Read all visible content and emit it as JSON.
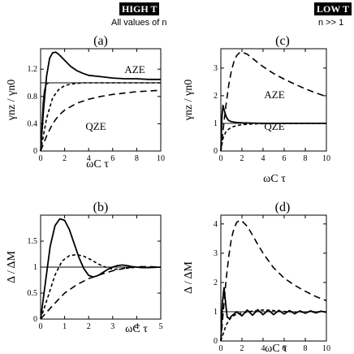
{
  "header": {
    "left_badge": "HIGH T",
    "left_note": "All values of n",
    "right_badge": "LOW T",
    "right_note": "n >> 1"
  },
  "chart_data": [
    {
      "panel": "(a)",
      "type": "line",
      "ylabel": "γnz / γn0",
      "xlabel": "ωC τ",
      "xlim": [
        0,
        10
      ],
      "ylim": [
        0,
        1.5
      ],
      "xticks": [
        0,
        2,
        4,
        6,
        8,
        10
      ],
      "yticks": [
        0,
        0.4,
        0.8,
        1.2
      ],
      "ytick_labels": [
        "0",
        "0.4",
        "0.8",
        "1.2"
      ],
      "annotations": [
        "AZE",
        "QZE"
      ],
      "series": [
        {
          "style": "solid",
          "x": [
            0,
            0.25,
            0.5,
            0.75,
            1,
            1.25,
            1.5,
            2,
            2.5,
            3,
            3.5,
            4,
            5,
            6,
            7,
            8,
            9,
            10
          ],
          "values": [
            0,
            0.62,
            1.1,
            1.36,
            1.44,
            1.45,
            1.42,
            1.33,
            1.24,
            1.18,
            1.14,
            1.11,
            1.09,
            1.07,
            1.06,
            1.06,
            1.05,
            1.05
          ]
        },
        {
          "style": "thin",
          "x": [
            0,
            0.1,
            0.2,
            0.3,
            0.4,
            0.5,
            0.7,
            1,
            1.5,
            2,
            10
          ],
          "values": [
            0,
            0.4,
            0.72,
            0.88,
            0.95,
            0.98,
            1.0,
            1.0,
            1.0,
            1.0,
            1.0
          ]
        },
        {
          "style": "short-dash",
          "x": [
            0,
            0.5,
            1,
            1.5,
            2,
            2.5,
            3,
            3.5,
            4,
            10
          ],
          "values": [
            0,
            0.48,
            0.78,
            0.9,
            0.96,
            0.98,
            0.99,
            1.0,
            1.0,
            1.0
          ]
        },
        {
          "style": "long-dash",
          "x": [
            0,
            0.5,
            1,
            1.5,
            2,
            3,
            4,
            5,
            6,
            7,
            8,
            9,
            10
          ],
          "values": [
            0,
            0.22,
            0.4,
            0.52,
            0.6,
            0.7,
            0.76,
            0.8,
            0.83,
            0.85,
            0.87,
            0.88,
            0.89
          ]
        }
      ],
      "reference_line": 1.0
    },
    {
      "panel": "(b)",
      "type": "line",
      "ylabel": "Δ / ΔM",
      "xlabel": "ωC τ",
      "xlim": [
        0,
        5
      ],
      "ylim": [
        0,
        2
      ],
      "xticks": [
        0,
        1,
        2,
        3,
        4,
        5
      ],
      "yticks": [
        0,
        0.5,
        1,
        1.5
      ],
      "ytick_labels": [
        "0",
        "0.5",
        "1",
        "1.5"
      ],
      "series": [
        {
          "style": "solid",
          "x": [
            0,
            0.2,
            0.4,
            0.6,
            0.8,
            1,
            1.2,
            1.4,
            1.6,
            1.8,
            2,
            2.2,
            2.4,
            2.6,
            2.8,
            3,
            3.2,
            3.4,
            3.6,
            3.8,
            4,
            4.2,
            4.5,
            5
          ],
          "values": [
            0,
            0.7,
            1.4,
            1.8,
            1.93,
            1.9,
            1.72,
            1.45,
            1.18,
            0.97,
            0.84,
            0.81,
            0.84,
            0.9,
            0.96,
            1.0,
            1.03,
            1.04,
            1.03,
            1.01,
            1.0,
            0.99,
            0.99,
            1.0
          ]
        },
        {
          "style": "short-dash",
          "x": [
            0,
            0.3,
            0.6,
            0.9,
            1.2,
            1.5,
            1.8,
            2.1,
            2.4,
            2.7,
            3,
            3.3,
            3.6,
            4,
            4.5,
            5
          ],
          "values": [
            0,
            0.42,
            0.85,
            1.12,
            1.22,
            1.24,
            1.21,
            1.14,
            1.06,
            1.0,
            0.96,
            0.96,
            0.98,
            1.0,
            1.0,
            1.0
          ]
        },
        {
          "style": "long-dash",
          "x": [
            0,
            0.5,
            1,
            1.5,
            2,
            2.5,
            3,
            3.5,
            4,
            4.5,
            5
          ],
          "values": [
            0,
            0.26,
            0.5,
            0.66,
            0.78,
            0.86,
            0.93,
            0.98,
            1.01,
            1.01,
            1.0
          ]
        }
      ],
      "reference_line": 1.0
    },
    {
      "panel": "(c)",
      "type": "line",
      "ylabel": "γnz / γn0",
      "xlabel": "ωC τ",
      "xlim": [
        0,
        10
      ],
      "ylim": [
        0,
        3.7
      ],
      "xticks": [
        0,
        2,
        4,
        6,
        8,
        10
      ],
      "yticks": [
        0,
        1,
        2,
        3
      ],
      "ytick_labels": [
        "0",
        "1",
        "2",
        "3"
      ],
      "annotations": [
        "AZE",
        "QZE"
      ],
      "series": [
        {
          "style": "long-dash",
          "x": [
            0,
            0.25,
            0.5,
            0.75,
            1,
            1.25,
            1.5,
            1.75,
            2,
            2.5,
            3,
            4,
            5,
            6,
            7,
            8,
            9,
            10
          ],
          "values": [
            0,
            0.9,
            1.7,
            2.4,
            2.9,
            3.25,
            3.45,
            3.55,
            3.58,
            3.5,
            3.35,
            3.05,
            2.8,
            2.6,
            2.42,
            2.25,
            2.1,
            1.97
          ]
        },
        {
          "style": "solid",
          "x": [
            0,
            0.1,
            0.2,
            0.3,
            0.5,
            0.7,
            1,
            1.5,
            2,
            3,
            4,
            10
          ],
          "values": [
            0,
            1.2,
            1.65,
            1.5,
            1.25,
            1.12,
            1.06,
            1.03,
            1.02,
            1.01,
            1.0,
            1.0
          ]
        },
        {
          "style": "short-dash",
          "x": [
            0,
            0.2,
            0.5,
            1,
            1.5,
            2,
            3,
            4,
            10
          ],
          "values": [
            0,
            0.45,
            0.72,
            0.86,
            0.92,
            0.95,
            0.98,
            0.99,
            1.0
          ]
        }
      ],
      "reference_line": 1.0
    },
    {
      "panel": "(d)",
      "type": "line",
      "ylabel": "Δ / ΔM",
      "xlabel": "ωC τ",
      "xlim": [
        0,
        10
      ],
      "ylim": [
        0,
        4.3
      ],
      "xticks": [
        0,
        2,
        4,
        6,
        8,
        10
      ],
      "yticks": [
        0,
        1,
        2,
        3,
        4
      ],
      "ytick_labels": [
        "0",
        "1",
        "2",
        "3",
        "4"
      ],
      "series": [
        {
          "style": "long-dash",
          "x": [
            0,
            0.25,
            0.5,
            0.75,
            1,
            1.25,
            1.5,
            1.75,
            2,
            2.5,
            3,
            3.5,
            4,
            5,
            6,
            7,
            8,
            9,
            10
          ],
          "values": [
            0,
            1.1,
            2.1,
            2.9,
            3.5,
            3.85,
            4.05,
            4.12,
            4.1,
            3.92,
            3.62,
            3.3,
            3.0,
            2.5,
            2.15,
            1.9,
            1.7,
            1.52,
            1.38
          ]
        },
        {
          "style": "solid",
          "x": [
            0,
            0.15,
            0.3,
            0.45,
            0.6,
            0.8,
            1,
            1.5,
            2,
            2.5,
            3,
            3.5,
            4,
            4.5,
            5,
            5.5,
            6,
            6.5,
            7,
            7.5,
            8,
            8.5,
            9,
            9.5,
            10
          ],
          "values": [
            0,
            1.3,
            1.82,
            1.3,
            0.82,
            0.76,
            0.85,
            1.0,
            0.86,
            1.06,
            0.88,
            1.07,
            0.9,
            1.06,
            0.9,
            1.05,
            0.92,
            1.04,
            0.93,
            1.03,
            0.95,
            1.03,
            0.96,
            1.02,
            0.98
          ]
        },
        {
          "style": "short-dash",
          "x": [
            0,
            0.5,
            1,
            1.5,
            2,
            3,
            4,
            5,
            6,
            7,
            8,
            9,
            10
          ],
          "values": [
            0,
            0.55,
            0.82,
            0.92,
            0.96,
            1.02,
            1.06,
            1.04,
            1.01,
            0.99,
            0.99,
            1.0,
            1.0
          ]
        }
      ],
      "reference_line": 1.0
    }
  ]
}
